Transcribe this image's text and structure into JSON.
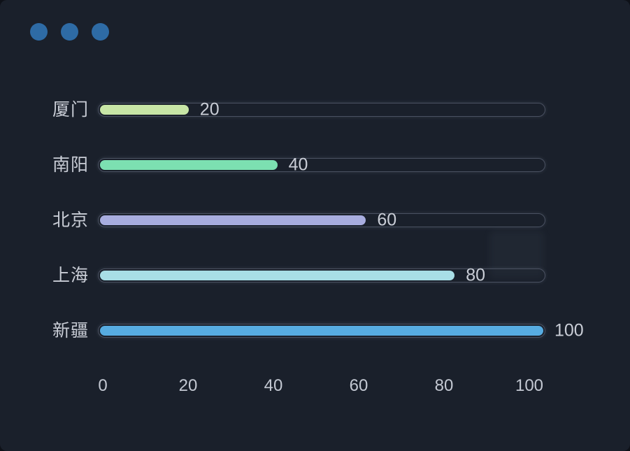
{
  "window": {
    "background": "#1a202b",
    "outer_background": "#0e1118",
    "dots": [
      {
        "name": "window-dot-1"
      },
      {
        "name": "window-dot-2"
      },
      {
        "name": "window-dot-3"
      }
    ],
    "dot_color": "#2e6ba5"
  },
  "chart_data": {
    "type": "bar",
    "orientation": "horizontal",
    "title": "",
    "xlabel": "",
    "ylabel": "",
    "categories": [
      "厦门",
      "南阳",
      "北京",
      "上海",
      "新疆"
    ],
    "values": [
      20,
      40,
      60,
      80,
      100
    ],
    "value_labels": [
      "20",
      "40",
      "60",
      "80",
      "100"
    ],
    "bar_colors": [
      "#c8e6a6",
      "#7ce0b1",
      "#a8addf",
      "#a8dee6",
      "#57ace1"
    ],
    "x_ticks": [
      "0",
      "20",
      "40",
      "60",
      "80",
      "100"
    ],
    "x_tick_values": [
      0,
      20,
      40,
      60,
      80,
      100
    ],
    "xlim": [
      0,
      100
    ],
    "grid": false,
    "legend": false,
    "track_border_color": "#4a5161",
    "label_color": "#c9cdd6",
    "tick_color": "#c3c8d2"
  }
}
